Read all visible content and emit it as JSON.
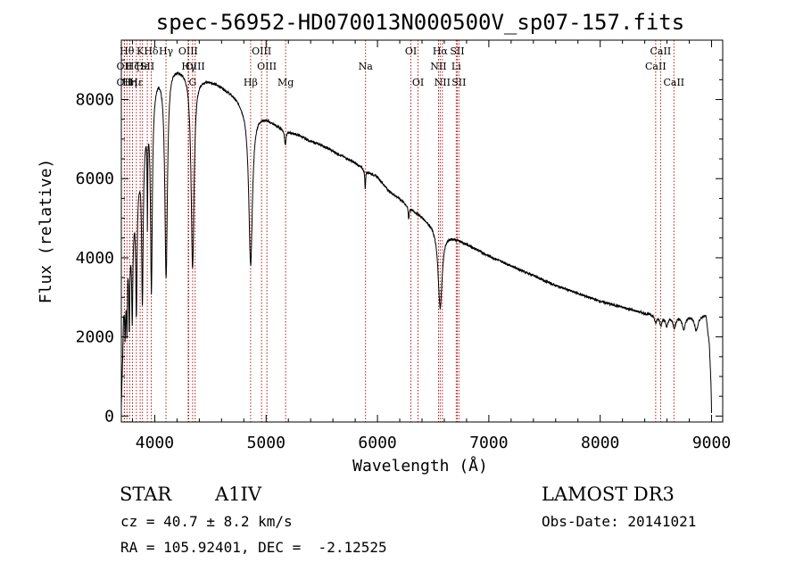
{
  "chart_data": {
    "type": "line",
    "title": "spec-56952-HD070013N000500V_sp07-157.fits",
    "xlabel": "Wavelength (Å)",
    "ylabel": "Flux (relative)",
    "xlim": [
      3700,
      9100
    ],
    "ylim": [
      -150,
      9500
    ],
    "xticks": [
      4000,
      5000,
      6000,
      7000,
      8000,
      9000
    ],
    "yticks": [
      0,
      2000,
      4000,
      6000,
      8000
    ],
    "series": [
      {
        "name": "spectrum",
        "continuum": [
          [
            3700,
            200
          ],
          [
            3705,
            800
          ],
          [
            3712,
            1500
          ],
          [
            3720,
            2600
          ],
          [
            3740,
            3300
          ],
          [
            3760,
            4300
          ],
          [
            3790,
            4600
          ],
          [
            3820,
            5400
          ],
          [
            3850,
            6000
          ],
          [
            3880,
            6600
          ],
          [
            3910,
            7200
          ],
          [
            3940,
            7800
          ],
          [
            3970,
            8300
          ],
          [
            4000,
            8500
          ],
          [
            4030,
            8650
          ],
          [
            4060,
            8700
          ],
          [
            4100,
            8800
          ],
          [
            4150,
            8900
          ],
          [
            4200,
            8850
          ],
          [
            4250,
            8800
          ],
          [
            4300,
            8750
          ],
          [
            4350,
            8700
          ],
          [
            4400,
            8600
          ],
          [
            4450,
            8550
          ],
          [
            4500,
            8500
          ],
          [
            4600,
            8350
          ],
          [
            4700,
            8150
          ],
          [
            4800,
            7900
          ],
          [
            4861,
            7800
          ],
          [
            4900,
            7700
          ],
          [
            5000,
            7550
          ],
          [
            5100,
            7350
          ],
          [
            5200,
            7200
          ],
          [
            5300,
            7100
          ],
          [
            5400,
            6950
          ],
          [
            5500,
            6850
          ],
          [
            5600,
            6700
          ],
          [
            5700,
            6550
          ],
          [
            5800,
            6400
          ],
          [
            5900,
            6200
          ],
          [
            6000,
            6050
          ],
          [
            6100,
            5700
          ],
          [
            6200,
            5500
          ],
          [
            6300,
            5250
          ],
          [
            6400,
            5050
          ],
          [
            6500,
            4850
          ],
          [
            6600,
            4650
          ],
          [
            6700,
            4500
          ],
          [
            6800,
            4350
          ],
          [
            6900,
            4200
          ],
          [
            7000,
            4050
          ],
          [
            7200,
            3800
          ],
          [
            7400,
            3550
          ],
          [
            7600,
            3300
          ],
          [
            7800,
            3100
          ],
          [
            8000,
            2900
          ],
          [
            8200,
            2750
          ],
          [
            8400,
            2600
          ],
          [
            8600,
            2550
          ],
          [
            8800,
            2550
          ],
          [
            8950,
            2550
          ],
          [
            8980,
            1800
          ],
          [
            8995,
            800
          ],
          [
            9000,
            100
          ]
        ],
        "absorption_lines": [
          {
            "center": 3734,
            "depth": 0.35,
            "width": 4
          },
          {
            "center": 3750,
            "depth": 0.45,
            "width": 5
          },
          {
            "center": 3771,
            "depth": 0.5,
            "width": 5
          },
          {
            "center": 3798,
            "depth": 0.5,
            "width": 6
          },
          {
            "center": 3835,
            "depth": 0.55,
            "width": 7
          },
          {
            "center": 3889,
            "depth": 0.58,
            "width": 8
          },
          {
            "center": 3934,
            "depth": 0.35,
            "width": 3
          },
          {
            "center": 3970,
            "depth": 0.62,
            "width": 10
          },
          {
            "center": 4102,
            "depth": 0.6,
            "width": 14
          },
          {
            "center": 4340,
            "depth": 0.57,
            "width": 16
          },
          {
            "center": 4861,
            "depth": 0.51,
            "width": 20
          },
          {
            "center": 5172,
            "depth": 0.05,
            "width": 8
          },
          {
            "center": 5890,
            "depth": 0.08,
            "width": 4
          },
          {
            "center": 6280,
            "depth": 0.06,
            "width": 5
          },
          {
            "center": 6563,
            "depth": 0.42,
            "width": 22
          },
          {
            "center": 8498,
            "depth": 0.08,
            "width": 12
          },
          {
            "center": 8545,
            "depth": 0.09,
            "width": 14
          },
          {
            "center": 8598,
            "depth": 0.1,
            "width": 15
          },
          {
            "center": 8665,
            "depth": 0.12,
            "width": 16
          },
          {
            "center": 8750,
            "depth": 0.13,
            "width": 18
          },
          {
            "center": 8863,
            "depth": 0.15,
            "width": 20
          }
        ]
      }
    ],
    "line_markers": [
      {
        "x": 3727,
        "label": "OII",
        "row": 2
      },
      {
        "x": 3727,
        "label": "OII",
        "row": 3
      },
      {
        "x": 3750,
        "label": "Hθ",
        "row": 1
      },
      {
        "x": 3775,
        "label": "Hη",
        "row": 3
      },
      {
        "x": 3800,
        "label": "Hζ",
        "row": 2
      },
      {
        "x": 3835,
        "label": "Hε",
        "row": 3
      },
      {
        "x": 3869,
        "label": "K",
        "row": 1
      },
      {
        "x": 3890,
        "label": "Hε",
        "row": 2
      },
      {
        "x": 3933,
        "label": "SII",
        "row": 2
      },
      {
        "x": 3968,
        "label": "Hδ",
        "row": 1
      },
      {
        "x": 4101,
        "label": "Hγ",
        "row": 1
      },
      {
        "x": 4300,
        "label": "OIII",
        "row": 1
      },
      {
        "x": 4305,
        "label": "Hγ",
        "row": 2
      },
      {
        "x": 4340,
        "label": "G",
        "row": 3
      },
      {
        "x": 4363,
        "label": "OIII",
        "row": 2
      },
      {
        "x": 4861,
        "label": "Hβ",
        "row": 3
      },
      {
        "x": 4959,
        "label": "OIII",
        "row": 1
      },
      {
        "x": 5007,
        "label": "OIII",
        "row": 2
      },
      {
        "x": 5175,
        "label": "Mg",
        "row": 3
      },
      {
        "x": 5893,
        "label": "Na",
        "row": 2
      },
      {
        "x": 6300,
        "label": "OI",
        "row": 1
      },
      {
        "x": 6364,
        "label": "OI",
        "row": 3
      },
      {
        "x": 6548,
        "label": "NII",
        "row": 2
      },
      {
        "x": 6563,
        "label": "Hα",
        "row": 1
      },
      {
        "x": 6583,
        "label": "NII",
        "row": 3
      },
      {
        "x": 6707,
        "label": "Li",
        "row": 2
      },
      {
        "x": 6716,
        "label": "SII",
        "row": 1
      },
      {
        "x": 6731,
        "label": "SII",
        "row": 3
      },
      {
        "x": 8498,
        "label": "CaII",
        "row": 2
      },
      {
        "x": 8542,
        "label": "CaII",
        "row": 1
      },
      {
        "x": 8662,
        "label": "CaII",
        "row": 3
      }
    ]
  },
  "info": {
    "object_class": "STAR",
    "subclass": "A1IV",
    "survey": "LAMOST DR3",
    "redshift_line": "cz = 40.7 ± 8.2 km/s",
    "obs_date": "Obs-Date: 20141021",
    "coords": "RA = 105.92401, DEC =  -2.12525"
  }
}
